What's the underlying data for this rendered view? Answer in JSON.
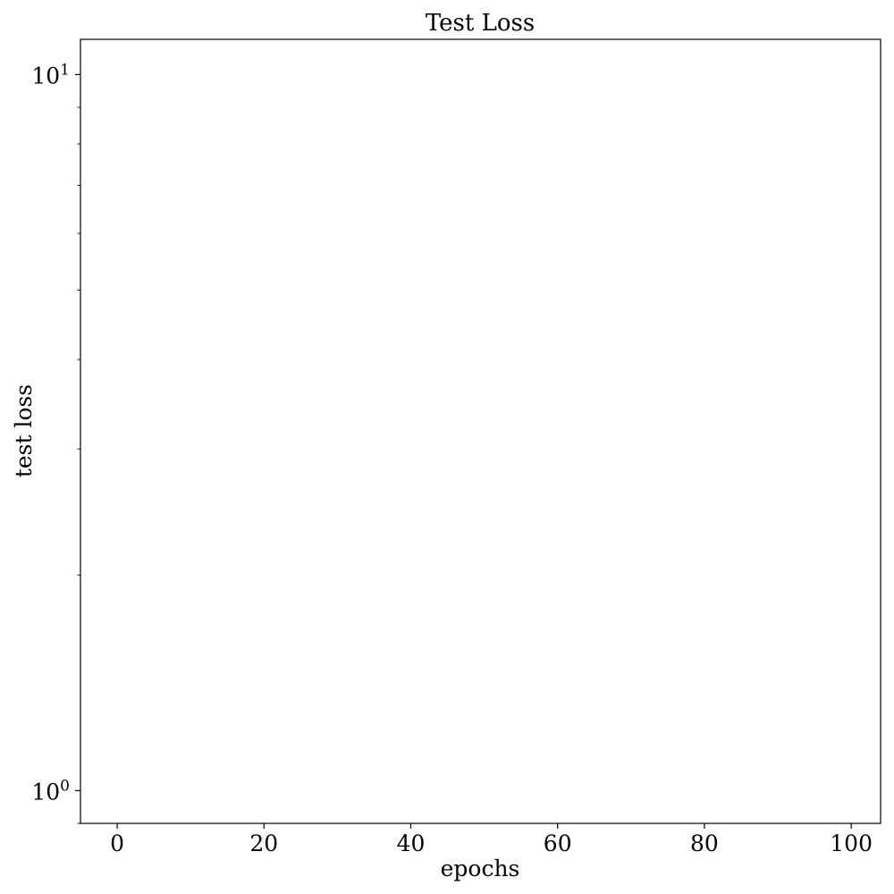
{
  "chart_data": {
    "type": "line",
    "title": "Test Loss",
    "xlabel": "epochs",
    "ylabel": "test loss",
    "xlim": [
      -5,
      104
    ],
    "ylim": [
      0.9,
      11.2
    ],
    "yscale": "log",
    "x_ticks": [
      0,
      20,
      40,
      60,
      80,
      100
    ],
    "y_major_ticks": [
      {
        "value": 1,
        "base": "10",
        "exponent": "0"
      },
      {
        "value": 10,
        "base": "10",
        "exponent": "1"
      }
    ],
    "y_minor_ticks": [
      0.9,
      2,
      3,
      4,
      5,
      6,
      7,
      8,
      9
    ],
    "grid": false,
    "series": []
  }
}
